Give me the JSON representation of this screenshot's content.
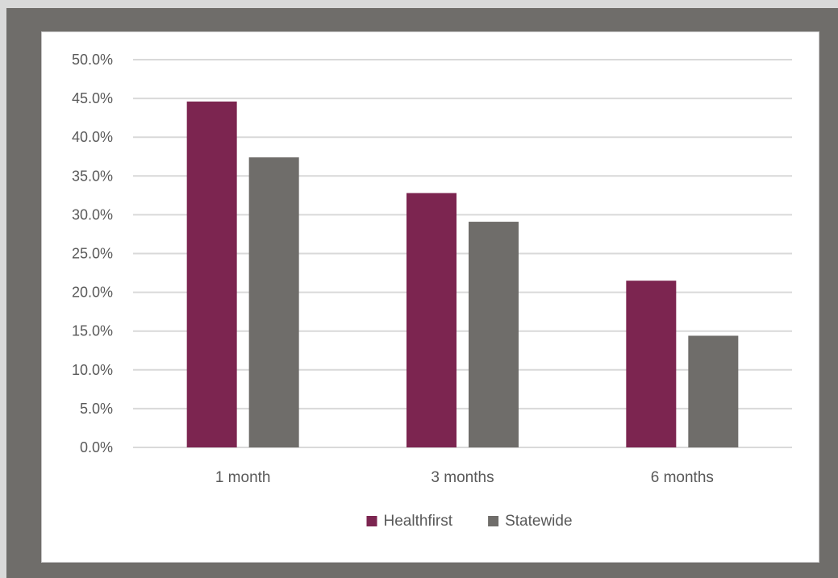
{
  "chart_data": {
    "type": "bar",
    "categories": [
      "1 month",
      "3 months",
      "6 months"
    ],
    "series": [
      {
        "name": "Healthfirst",
        "values": [
          44.6,
          32.8,
          21.5
        ],
        "color": "#7c2550"
      },
      {
        "name": "Statewide",
        "values": [
          37.4,
          29.1,
          14.4
        ],
        "color": "#6f6d6a"
      }
    ],
    "y_ticks": [
      "0.0%",
      "5.0%",
      "10.0%",
      "15.0%",
      "20.0%",
      "25.0%",
      "30.0%",
      "35.0%",
      "40.0%",
      "45.0%",
      "50.0%"
    ],
    "ylim": [
      0,
      50
    ],
    "grid": true,
    "legend_position": "bottom",
    "gridline_color": "#d9d9d9",
    "background_color": "#ffffff",
    "frame_color": "#6f6d6a"
  }
}
